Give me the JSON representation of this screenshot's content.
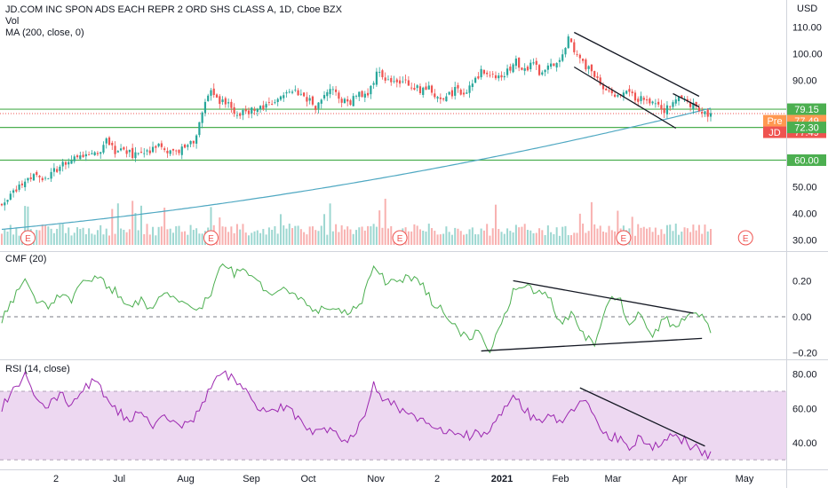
{
  "legend": {
    "main_title": "JD.COM INC SPON ADS EACH REPR 2 ORD SHS CLASS A, 1D, Cboe BZX",
    "volume_label": "Vol",
    "ma_label": "MA (200, close, 0)",
    "cmf_label": "CMF (20)",
    "rsi_label": "RSI (14, close)"
  },
  "colors": {
    "up": "#26a69a",
    "down": "#ef5350",
    "ma_line": "#4fa8c2",
    "cmf_line": "#4caf50",
    "rsi_line": "#9c27b0",
    "rsi_band": "#e1bee7",
    "level_line": "#4caf50",
    "trendline": "#131722",
    "pre_badge": "#ff9850",
    "jd_badge": "#ef5350",
    "level_badge": "#4caf50"
  },
  "chart_data": [
    {
      "type": "candlestick",
      "title": "JD.COM INC SPON ADS EACH REPR 2 ORD SHS CLASS A, 1D, Cboe BZX",
      "currency": "USD",
      "ylim": [
        28,
        113
      ],
      "y_ticks": [
        30.0,
        40.0,
        50.0,
        60.0,
        70.0,
        80.0,
        90.0,
        100.0,
        110.0
      ],
      "x_ticks": [
        "2",
        "Jul",
        "Aug",
        "Sep",
        "Oct",
        "Nov",
        "2",
        "2021",
        "Feb",
        "Mar",
        "Apr",
        "May"
      ],
      "close_path": [
        [
          0,
          44
        ],
        [
          3,
          47
        ],
        [
          6,
          50
        ],
        [
          9,
          53
        ],
        [
          12,
          55
        ],
        [
          15,
          53
        ],
        [
          18,
          56
        ],
        [
          21,
          58
        ],
        [
          24,
          60
        ],
        [
          27,
          61
        ],
        [
          30,
          62
        ],
        [
          33,
          63
        ],
        [
          36,
          67
        ],
        [
          39,
          63
        ],
        [
          42,
          64
        ],
        [
          45,
          62
        ],
        [
          48,
          64
        ],
        [
          51,
          63
        ],
        [
          54,
          65
        ],
        [
          57,
          63
        ],
        [
          60,
          64
        ],
        [
          63,
          64
        ],
        [
          66,
          67
        ],
        [
          69,
          78
        ],
        [
          72,
          86
        ],
        [
          75,
          82
        ],
        [
          78,
          81
        ],
        [
          81,
          78
        ],
        [
          84,
          78
        ],
        [
          87,
          79
        ],
        [
          90,
          80
        ],
        [
          93,
          82
        ],
        [
          96,
          84
        ],
        [
          99,
          85
        ],
        [
          102,
          85
        ],
        [
          105,
          83
        ],
        [
          108,
          80
        ],
        [
          111,
          84
        ],
        [
          114,
          86
        ],
        [
          117,
          83
        ],
        [
          120,
          82
        ],
        [
          123,
          85
        ],
        [
          126,
          84
        ],
        [
          129,
          93
        ],
        [
          132,
          91
        ],
        [
          135,
          89
        ],
        [
          138,
          90
        ],
        [
          141,
          88
        ],
        [
          144,
          86
        ],
        [
          147,
          87
        ],
        [
          150,
          84
        ],
        [
          153,
          84
        ],
        [
          156,
          86
        ],
        [
          159,
          85
        ],
        [
          162,
          90
        ],
        [
          165,
          93
        ],
        [
          168,
          92
        ],
        [
          171,
          91
        ],
        [
          174,
          93
        ],
        [
          177,
          97
        ],
        [
          180,
          94
        ],
        [
          183,
          96
        ],
        [
          186,
          92
        ],
        [
          189,
          96
        ],
        [
          192,
          98
        ],
        [
          195,
          106
        ],
        [
          198,
          100
        ],
        [
          201,
          95
        ],
        [
          204,
          92
        ],
        [
          207,
          88
        ],
        [
          210,
          86
        ],
        [
          213,
          84
        ],
        [
          216,
          85
        ],
        [
          219,
          83
        ],
        [
          222,
          82
        ],
        [
          225,
          80
        ],
        [
          228,
          79
        ],
        [
          231,
          82
        ],
        [
          234,
          84
        ],
        [
          237,
          81
        ],
        [
          240,
          79
        ],
        [
          242,
          78
        ],
        [
          244,
          77.5
        ]
      ],
      "candle_count": 245,
      "ma200": {
        "name": "MA (200, close, 0)",
        "start": 34,
        "end": 79.5
      },
      "volume": {
        "label": "Vol",
        "earnings_markers": [
          "E",
          "E",
          "E",
          "E",
          "E"
        ]
      },
      "horizontal_levels": [
        79.15,
        72.3,
        60.0
      ],
      "price_badges": [
        {
          "label": "Pre",
          "value": "77.49"
        },
        {
          "label": "JD",
          "value": "77.49"
        },
        {
          "label": "",
          "value": "79.15"
        },
        {
          "label": "",
          "value": "72.30"
        },
        {
          "label": "",
          "value": "60.00"
        }
      ],
      "trendlines": [
        {
          "from": [
            197,
            108
          ],
          "to": [
            240,
            84
          ]
        },
        {
          "from": [
            197,
            95
          ],
          "to": [
            232,
            72
          ]
        },
        {
          "from": [
            231,
            85
          ],
          "to": [
            240,
            80
          ]
        }
      ]
    },
    {
      "type": "line",
      "title": "CMF (20)",
      "ylim": [
        -0.24,
        0.36
      ],
      "y_ticks": [
        "0.20",
        "0.00",
        "−0.20"
      ],
      "zero_line": 0,
      "path": [
        [
          0,
          -0.02
        ],
        [
          4,
          0.1
        ],
        [
          8,
          0.22
        ],
        [
          12,
          0.1
        ],
        [
          16,
          0.05
        ],
        [
          20,
          0.12
        ],
        [
          24,
          0.08
        ],
        [
          28,
          0.2
        ],
        [
          32,
          0.22
        ],
        [
          36,
          0.18
        ],
        [
          40,
          0.13
        ],
        [
          44,
          0.06
        ],
        [
          48,
          0.09
        ],
        [
          52,
          0.03
        ],
        [
          56,
          0.15
        ],
        [
          60,
          0.1
        ],
        [
          64,
          0.08
        ],
        [
          68,
          0.05
        ],
        [
          72,
          0.12
        ],
        [
          76,
          0.31
        ],
        [
          80,
          0.24
        ],
        [
          84,
          0.26
        ],
        [
          88,
          0.19
        ],
        [
          92,
          0.11
        ],
        [
          96,
          0.15
        ],
        [
          100,
          0.13
        ],
        [
          104,
          0.08
        ],
        [
          108,
          0.04
        ],
        [
          112,
          0.03
        ],
        [
          116,
          0.05
        ],
        [
          120,
          0.02
        ],
        [
          124,
          0.09
        ],
        [
          128,
          0.27
        ],
        [
          132,
          0.2
        ],
        [
          136,
          0.21
        ],
        [
          140,
          0.22
        ],
        [
          144,
          0.2
        ],
        [
          148,
          0.09
        ],
        [
          152,
          0.03
        ],
        [
          156,
          -0.06
        ],
        [
          160,
          -0.12
        ],
        [
          164,
          -0.08
        ],
        [
          168,
          -0.18
        ],
        [
          172,
          -0.04
        ],
        [
          176,
          0.14
        ],
        [
          180,
          0.16
        ],
        [
          184,
          0.15
        ],
        [
          188,
          0.12
        ],
        [
          192,
          -0.04
        ],
        [
          196,
          0.02
        ],
        [
          200,
          -0.1
        ],
        [
          204,
          -0.14
        ],
        [
          208,
          0.06
        ],
        [
          212,
          0.12
        ],
        [
          216,
          -0.04
        ],
        [
          220,
          0.02
        ],
        [
          224,
          -0.12
        ],
        [
          228,
          0.01
        ],
        [
          232,
          -0.07
        ],
        [
          236,
          0.01
        ],
        [
          240,
          0.02
        ],
        [
          244,
          -0.09
        ]
      ],
      "trendlines": [
        {
          "from": [
            176,
            0.2
          ],
          "to": [
            238,
            0.02
          ]
        },
        {
          "from": [
            165,
            -0.19
          ],
          "to": [
            241,
            -0.12
          ]
        }
      ]
    },
    {
      "type": "line",
      "title": "RSI (14, close)",
      "ylim": [
        26,
        86
      ],
      "y_ticks": [
        "80.00",
        "60.00",
        "40.00"
      ],
      "band": [
        30,
        70
      ],
      "path": [
        [
          0,
          60
        ],
        [
          4,
          72
        ],
        [
          8,
          79
        ],
        [
          12,
          65
        ],
        [
          16,
          60
        ],
        [
          20,
          70
        ],
        [
          24,
          62
        ],
        [
          28,
          72
        ],
        [
          32,
          76
        ],
        [
          36,
          66
        ],
        [
          40,
          58
        ],
        [
          44,
          54
        ],
        [
          48,
          58
        ],
        [
          52,
          48
        ],
        [
          56,
          57
        ],
        [
          60,
          53
        ],
        [
          64,
          49
        ],
        [
          68,
          60
        ],
        [
          72,
          72
        ],
        [
          76,
          80
        ],
        [
          80,
          77
        ],
        [
          84,
          70
        ],
        [
          88,
          62
        ],
        [
          92,
          56
        ],
        [
          96,
          60
        ],
        [
          100,
          58
        ],
        [
          104,
          52
        ],
        [
          108,
          45
        ],
        [
          112,
          47
        ],
        [
          116,
          44
        ],
        [
          120,
          42
        ],
        [
          124,
          53
        ],
        [
          128,
          74
        ],
        [
          132,
          65
        ],
        [
          136,
          61
        ],
        [
          140,
          56
        ],
        [
          144,
          52
        ],
        [
          148,
          50
        ],
        [
          152,
          47
        ],
        [
          156,
          46
        ],
        [
          160,
          44
        ],
        [
          164,
          45
        ],
        [
          168,
          46
        ],
        [
          172,
          58
        ],
        [
          176,
          66
        ],
        [
          180,
          60
        ],
        [
          184,
          52
        ],
        [
          188,
          55
        ],
        [
          192,
          52
        ],
        [
          196,
          58
        ],
        [
          200,
          65
        ],
        [
          204,
          55
        ],
        [
          208,
          45
        ],
        [
          212,
          42
        ],
        [
          216,
          38
        ],
        [
          220,
          44
        ],
        [
          224,
          36
        ],
        [
          228,
          42
        ],
        [
          232,
          44
        ],
        [
          236,
          40
        ],
        [
          240,
          35
        ],
        [
          244,
          33
        ]
      ],
      "trendlines": [
        {
          "from": [
            199,
            72
          ],
          "to": [
            242,
            38
          ]
        }
      ]
    }
  ]
}
